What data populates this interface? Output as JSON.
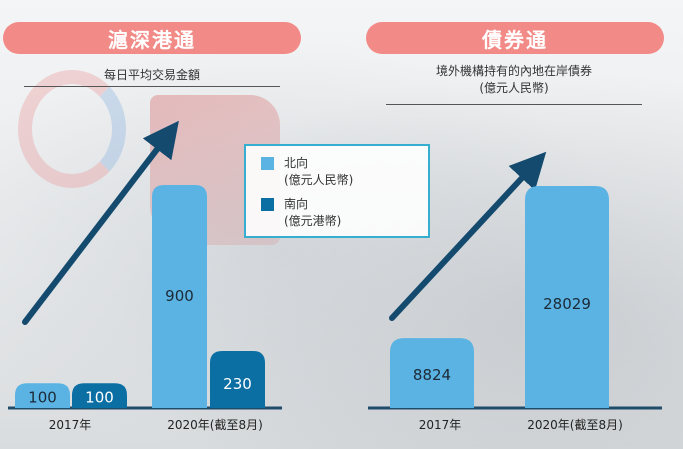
{
  "chart_data": [
    {
      "type": "bar",
      "title": "滬深港通",
      "subtitle": "每日平均交易金額",
      "categories": [
        "2017年",
        "2020年(截至8月)"
      ],
      "series": [
        {
          "name": "北向",
          "unit": "(億元人民幣)",
          "values": [
            100,
            900
          ],
          "color": "#5bb3e3"
        },
        {
          "name": "南向",
          "unit": "(億元港幣)",
          "values": [
            100,
            230
          ],
          "color": "#0b6fa4"
        }
      ],
      "legend": "top-center"
    },
    {
      "type": "bar",
      "title": "債券通",
      "subtitle": "境外機構持有的內地在岸債券",
      "subtitle_unit": "(億元人民幣)",
      "categories": [
        "2017年",
        "2020年(截至8月)"
      ],
      "series": [
        {
          "values": [
            8824,
            28029
          ],
          "color": "#5bb3e3"
        }
      ]
    }
  ],
  "colors": {
    "pill": "#f28b87",
    "northbound": "#5bb3e3",
    "southbound": "#0b6fa4",
    "arrow": "#134a6e",
    "axis": "#1f4c6b",
    "legend_border": "#35aed0"
  }
}
